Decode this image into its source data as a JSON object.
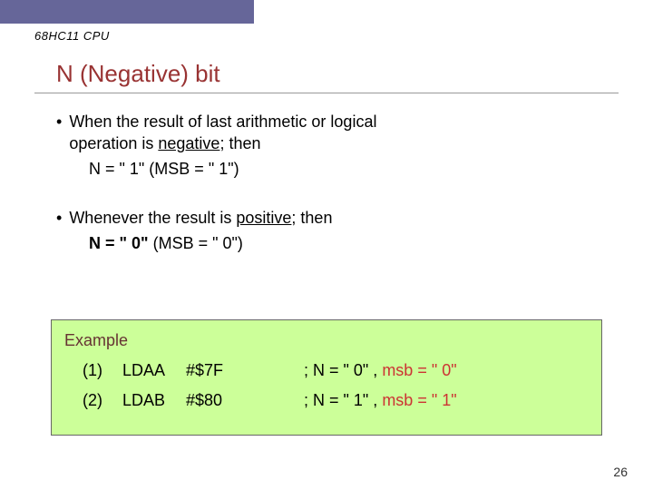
{
  "header": {
    "label": "68HC11 CPU"
  },
  "title": "N (Negative)  bit",
  "bullet1": {
    "line1a": "When the result of  last arithmetic or logical",
    "line1b": "operation is ",
    "line1b_u": "negative",
    "line1b_after": "; then",
    "eq": "N = \" 1\" (MSB = \" 1\")"
  },
  "bullet2": {
    "line": "Whenever the result is ",
    "line_u": "positive",
    "line_after": "; then",
    "eq_bold": "N = \" 0\"",
    "eq_rest": " (MSB = \" 0\")"
  },
  "example": {
    "title": "Example",
    "row1": {
      "num": "(1)",
      "instr": "LDAA",
      "operand": "#$7F",
      "comment_pre": "; N = \" 0\" , ",
      "comment_msb": "msb = \" 0\""
    },
    "row2": {
      "num": "(2)",
      "instr": "LDAB",
      "operand": "#$80",
      "comment_pre": "; N = \" 1\" , ",
      "comment_msb": "msb = \" 1\""
    }
  },
  "page": "26"
}
